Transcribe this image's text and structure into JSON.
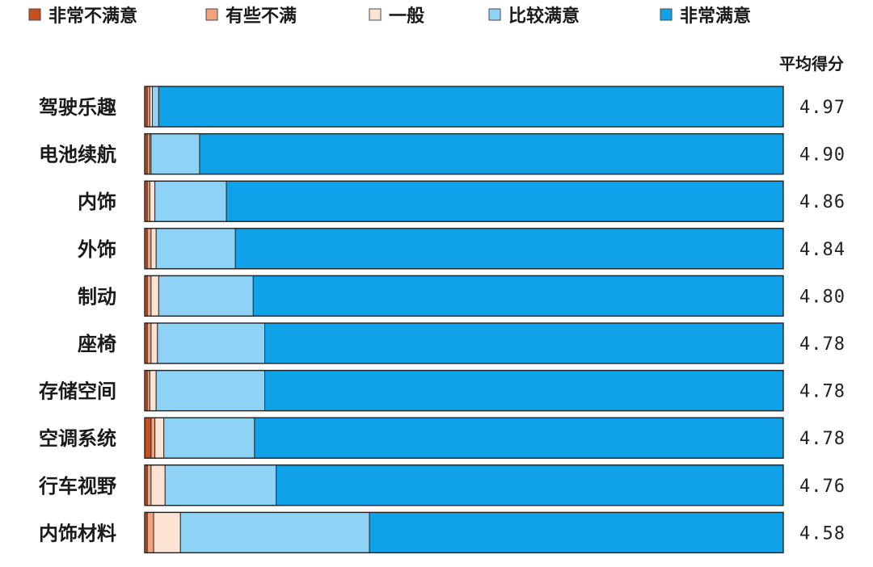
{
  "chart_data": {
    "type": "bar",
    "orientation": "horizontal",
    "stacked": true,
    "normalized": true,
    "score_header": "平均得分",
    "categories": [
      "驾驶乐趣",
      "电池续航",
      "内饰",
      "外饰",
      "制动",
      "座椅",
      "存储空间",
      "空调系统",
      "行车视野",
      "内饰材料"
    ],
    "scores": [
      "4.97",
      "4.90",
      "4.86",
      "4.84",
      "4.80",
      "4.78",
      "4.78",
      "4.78",
      "4.76",
      "4.58"
    ],
    "series": [
      {
        "name": "非常不满意",
        "color": "#c8501e",
        "values": [
          0.4,
          0.4,
          0.4,
          0.4,
          0.4,
          0.4,
          0.4,
          1.0,
          0.4,
          0.4
        ]
      },
      {
        "name": "有些不满",
        "color": "#f2a27c",
        "values": [
          0.4,
          0.4,
          0.4,
          0.6,
          0.6,
          0.6,
          0.4,
          0.6,
          0.6,
          1.0
        ]
      },
      {
        "name": "一般",
        "color": "#fde3d3",
        "values": [
          0.4,
          0.2,
          0.8,
          0.8,
          1.2,
          1.0,
          1.0,
          1.4,
          2.2,
          4.2
        ]
      },
      {
        "name": "比较满意",
        "color": "#8ed3f5",
        "values": [
          1.0,
          7.6,
          11.2,
          12.4,
          14.8,
          16.8,
          17.0,
          14.2,
          17.4,
          29.6
        ]
      },
      {
        "name": "非常满意",
        "color": "#0fa2e8",
        "values": [
          97.8,
          91.4,
          87.2,
          85.8,
          83.0,
          81.2,
          81.2,
          82.8,
          79.4,
          64.8
        ]
      }
    ],
    "xlim": [
      0,
      100
    ],
    "legend_position": "top",
    "grid": false
  }
}
